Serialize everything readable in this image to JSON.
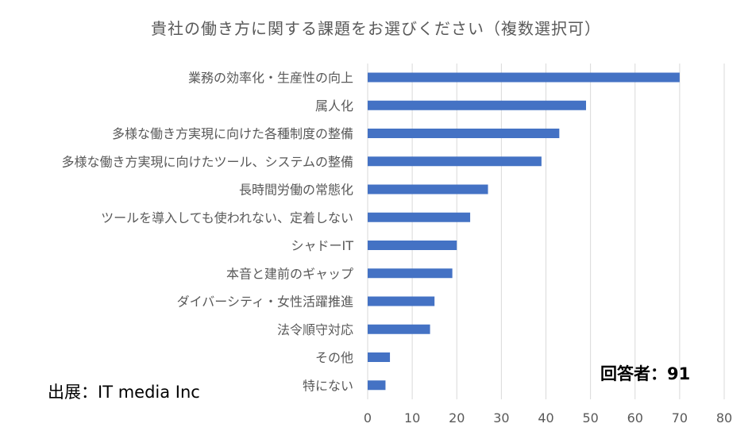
{
  "chart_data": {
    "type": "bar",
    "orientation": "horizontal",
    "title": "貴社の働き方に関する課題をお選びください（複数選択可）",
    "categories": [
      "業務の効率化・生産性の向上",
      "属人化",
      "多様な働き方実現に向けた各種制度の整備",
      "多様な働き方実現に向けたツール、システムの整備",
      "長時間労働の常態化",
      "ツールを導入しても使われない、定着しない",
      "シャドーIT",
      "本音と建前のギャップ",
      "ダイバーシティ・女性活躍推進",
      "法令順守対応",
      "その他",
      "特にない"
    ],
    "values": [
      70,
      49,
      43,
      39,
      27,
      23,
      20,
      19,
      15,
      14,
      5,
      4
    ],
    "xlim": [
      0,
      80
    ],
    "xticks": [
      0,
      10,
      20,
      30,
      40,
      50,
      60,
      70,
      80
    ],
    "grid": "vertical",
    "bar_color": "#4472C4"
  },
  "annotations": {
    "source": "出展：IT media Inc",
    "respondents": "回答者：91"
  }
}
